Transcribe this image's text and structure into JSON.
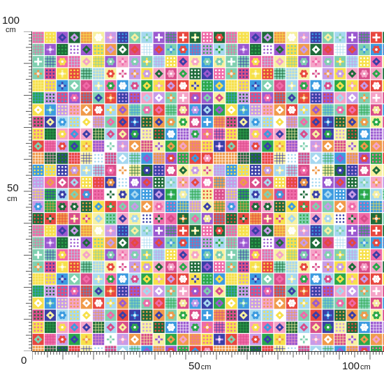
{
  "ruler": {
    "left_top_value": "100",
    "left_top_unit": "cm",
    "left_mid_value": "50",
    "left_mid_unit": "cm",
    "origin": "0",
    "bottom_mid_value": "50",
    "bottom_mid_unit": "cm",
    "bottom_end_value": "100",
    "bottom_end_unit": "cm"
  },
  "fabric": {
    "pattern": "patchwork-quilt-squares",
    "palette": [
      "#f06aa8",
      "#3c9be0",
      "#2aa84a",
      "#f7e04a",
      "#ffffff",
      "#9b59d0",
      "#e8473f",
      "#f5a3c7",
      "#1e6b3a",
      "#a6d8f0",
      "#c79be8",
      "#f7f0a0",
      "#3a3fa8",
      "#f09a4a",
      "#7fd0b0",
      "#d94d8a"
    ],
    "motifs": [
      "flower-icon",
      "plaid-icon",
      "dot-icon",
      "diamond-icon",
      "cross-stitch-icon"
    ]
  }
}
